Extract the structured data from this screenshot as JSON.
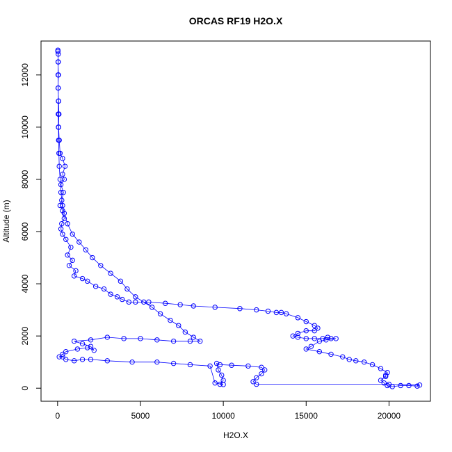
{
  "chart_data": {
    "type": "scatter",
    "title": "ORCAS RF19 H2O.X",
    "xlabel": "H2O.X",
    "ylabel": "Altitude (m)",
    "xlim": [
      -1000,
      22500
    ],
    "ylim": [
      -500,
      13300
    ],
    "x_ticks": [
      0,
      5000,
      10000,
      15000,
      20000
    ],
    "y_ticks": [
      0,
      2000,
      4000,
      6000,
      8000,
      10000,
      12000
    ],
    "grid": false,
    "legend": "none",
    "marker": "open-circle",
    "connected": true,
    "color": "#0000ff",
    "series": [
      {
        "values": [
          [
            20,
            12950
          ],
          [
            40,
            12800
          ],
          [
            30,
            12500
          ],
          [
            50,
            12000
          ],
          [
            30,
            11500
          ],
          [
            60,
            11000
          ],
          [
            80,
            10500
          ],
          [
            60,
            10000
          ],
          [
            100,
            9500
          ],
          [
            150,
            9000
          ],
          [
            300,
            8800
          ],
          [
            450,
            8500
          ],
          [
            300,
            8200
          ],
          [
            400,
            8000
          ],
          [
            200,
            7800
          ],
          [
            350,
            7500
          ],
          [
            250,
            7200
          ],
          [
            150,
            7000
          ],
          [
            300,
            6800
          ],
          [
            400,
            6500
          ],
          [
            250,
            6300
          ],
          [
            200,
            6100
          ],
          [
            300,
            5900
          ],
          [
            500,
            5700
          ],
          [
            800,
            5400
          ],
          [
            600,
            5100
          ],
          [
            900,
            4900
          ],
          [
            700,
            4700
          ],
          [
            1100,
            4500
          ],
          [
            1000,
            4300
          ],
          [
            1500,
            4200
          ],
          [
            1800,
            4100
          ],
          [
            2300,
            3900
          ],
          [
            2800,
            3800
          ],
          [
            3200,
            3600
          ],
          [
            3600,
            3500
          ],
          [
            3900,
            3400
          ],
          [
            4300,
            3300
          ],
          [
            4700,
            3300
          ],
          [
            5500,
            3300
          ],
          [
            6500,
            3250
          ],
          [
            7400,
            3200
          ],
          [
            8200,
            3150
          ],
          [
            9500,
            3100
          ],
          [
            11000,
            3050
          ],
          [
            12000,
            3000
          ],
          [
            12700,
            2950
          ],
          [
            13200,
            2900
          ],
          [
            13500,
            2900
          ],
          [
            13800,
            2850
          ],
          [
            14500,
            2700
          ],
          [
            15000,
            2550
          ],
          [
            15500,
            2400
          ],
          [
            15700,
            2300
          ],
          [
            15500,
            2200
          ],
          [
            15000,
            2200
          ],
          [
            14500,
            2100
          ],
          [
            14200,
            2000
          ],
          [
            14500,
            1950
          ],
          [
            15000,
            1900
          ],
          [
            15500,
            1900
          ],
          [
            16000,
            1900
          ],
          [
            16300,
            1950
          ],
          [
            16500,
            1900
          ],
          [
            16800,
            1900
          ],
          [
            16200,
            1850
          ],
          [
            15800,
            1800
          ],
          [
            15300,
            1600
          ],
          [
            15000,
            1500
          ],
          [
            15800,
            1400
          ],
          [
            16500,
            1300
          ],
          [
            17200,
            1200
          ],
          [
            17600,
            1100
          ],
          [
            18000,
            1050
          ],
          [
            18500,
            1000
          ],
          [
            19000,
            900
          ],
          [
            19500,
            750
          ],
          [
            19900,
            600
          ],
          [
            19800,
            500
          ],
          [
            19800,
            450
          ],
          [
            19500,
            300
          ],
          [
            19700,
            200
          ],
          [
            19900,
            100
          ],
          [
            20200,
            60
          ],
          [
            20700,
            100
          ],
          [
            21200,
            100
          ],
          [
            21700,
            80
          ],
          [
            21850,
            120
          ],
          [
            20000,
            150
          ],
          [
            12000,
            150
          ],
          [
            11800,
            250
          ],
          [
            12000,
            400
          ],
          [
            12300,
            550
          ],
          [
            12500,
            700
          ],
          [
            12300,
            800
          ],
          [
            11500,
            850
          ],
          [
            10500,
            880
          ],
          [
            9800,
            900
          ],
          [
            9600,
            950
          ],
          [
            9700,
            700
          ],
          [
            9900,
            500
          ],
          [
            10000,
            300
          ],
          [
            9800,
            150
          ],
          [
            10000,
            140
          ],
          [
            9500,
            200
          ],
          [
            9200,
            850
          ],
          [
            8000,
            900
          ],
          [
            7000,
            950
          ],
          [
            6000,
            1000
          ],
          [
            4500,
            1000
          ],
          [
            3000,
            1050
          ],
          [
            2000,
            1100
          ],
          [
            1500,
            1100
          ],
          [
            1000,
            1050
          ],
          [
            500,
            1100
          ],
          [
            300,
            1200
          ],
          [
            100,
            1200
          ],
          [
            300,
            1300
          ],
          [
            500,
            1400
          ],
          [
            1200,
            1500
          ],
          [
            1800,
            1550
          ],
          [
            2200,
            1450
          ],
          [
            2000,
            1600
          ],
          [
            1500,
            1700
          ],
          [
            1000,
            1800
          ],
          [
            2000,
            1850
          ],
          [
            3000,
            1950
          ],
          [
            4000,
            1900
          ],
          [
            5000,
            1900
          ],
          [
            6000,
            1850
          ],
          [
            7000,
            1800
          ],
          [
            8000,
            1800
          ],
          [
            8600,
            1800
          ],
          [
            8200,
            1950
          ],
          [
            7700,
            2150
          ],
          [
            7300,
            2400
          ],
          [
            6800,
            2600
          ],
          [
            6200,
            2850
          ],
          [
            5700,
            3100
          ],
          [
            5200,
            3300
          ],
          [
            4700,
            3500
          ],
          [
            4200,
            3800
          ],
          [
            3800,
            4100
          ],
          [
            3200,
            4400
          ],
          [
            2600,
            4700
          ],
          [
            2100,
            5000
          ],
          [
            1700,
            5300
          ],
          [
            1300,
            5600
          ],
          [
            900,
            5900
          ],
          [
            600,
            6300
          ],
          [
            400,
            6700
          ],
          [
            300,
            7000
          ],
          [
            200,
            7500
          ],
          [
            150,
            8000
          ],
          [
            100,
            8500
          ],
          [
            80,
            9000
          ],
          [
            60,
            9500
          ],
          [
            50,
            10000
          ],
          [
            40,
            10500
          ],
          [
            50,
            11000
          ],
          [
            40,
            11500
          ],
          [
            30,
            12000
          ],
          [
            40,
            12500
          ],
          [
            20,
            12900
          ]
        ]
      }
    ]
  }
}
